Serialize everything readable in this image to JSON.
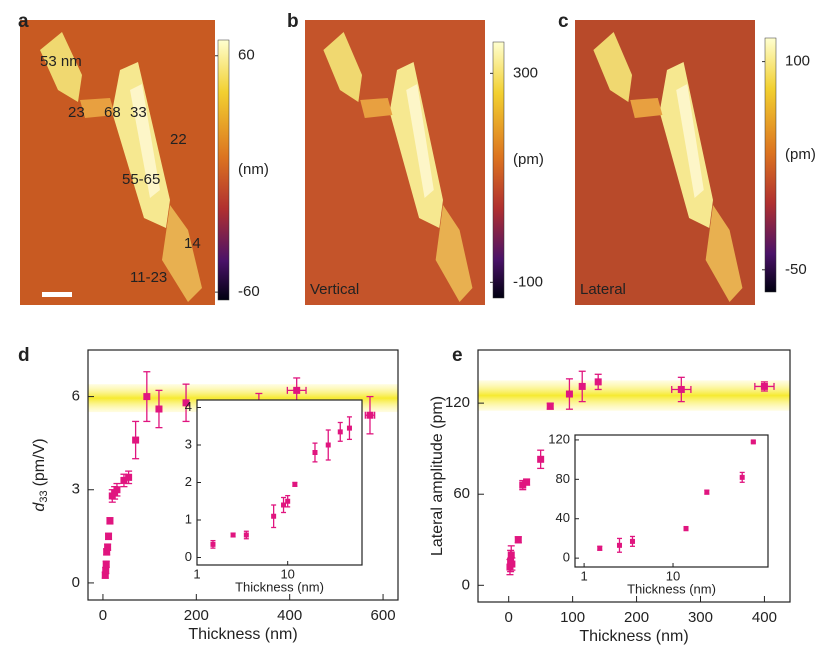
{
  "panel_labels": [
    "a",
    "b",
    "c",
    "d",
    "e"
  ],
  "images": [
    {
      "annotations": [
        "53 nm",
        "23",
        "68",
        "33",
        "22",
        "55-65",
        "14",
        "11-23"
      ],
      "colorbar": {
        "lim": [
          -64,
          68
        ],
        "ticks": [
          60,
          -60
        ],
        "unit": "(nm)"
      }
    },
    {
      "caption": "Vertical",
      "colorbar": {
        "lim": [
          -130,
          360
        ],
        "ticks": [
          300,
          -100
        ],
        "unit": "(pm)"
      }
    },
    {
      "caption": "Lateral",
      "colorbar": {
        "lim": [
          -66,
          117
        ],
        "ticks": [
          100,
          -50
        ],
        "unit": "(pm)"
      }
    }
  ],
  "chart_data": [
    {
      "type": "scatter",
      "xlabel": "Thickness (nm)",
      "ylabel": {
        "symbol": "d",
        "subscript": "33",
        "unit": "(pm/V)"
      },
      "xlim": [
        -32,
        632
      ],
      "ylim": [
        -0.55,
        7.5
      ],
      "xticks": [
        0,
        200,
        400,
        600
      ],
      "yticks": [
        0,
        3,
        6
      ],
      "band": [
        5.5,
        6.4
      ],
      "color": "#e0157f",
      "x": [
        5,
        6,
        7,
        8,
        10,
        12,
        15,
        20,
        25,
        30,
        45,
        55,
        70,
        94,
        120,
        178,
        240,
        334,
        415,
        572
      ],
      "values": [
        0.25,
        0.4,
        0.6,
        1.0,
        1.15,
        1.5,
        2.0,
        2.8,
        2.9,
        3.0,
        3.3,
        3.4,
        4.6,
        6.0,
        5.6,
        5.8,
        5.2,
        5.7,
        6.2,
        5.4
      ],
      "yerr": [
        0.1,
        0.1,
        0.1,
        0.1,
        0.1,
        0.1,
        0.1,
        0.2,
        0.2,
        0.2,
        0.2,
        0.2,
        0.6,
        0.8,
        0.6,
        0.6,
        0.05,
        0.4,
        0.4,
        0.6
      ],
      "xerr": [
        0,
        0,
        0,
        0,
        0,
        0,
        0,
        0,
        0,
        0,
        5,
        5,
        0,
        0,
        0,
        0,
        8,
        0,
        20,
        10
      ]
    },
    {
      "type": "scatter",
      "xlabel": "Thickness (nm)",
      "log_x": true,
      "xlim": [
        1,
        66
      ],
      "ylim": [
        -0.2,
        4.2
      ],
      "xticks": [
        1,
        10
      ],
      "yticks": [
        0,
        1,
        2,
        3,
        4
      ],
      "color": "#e0157f",
      "x": [
        1.5,
        2.5,
        3.5,
        7,
        9,
        10,
        12,
        20,
        28,
        38,
        48
      ],
      "values": [
        0.35,
        0.6,
        0.6,
        1.1,
        1.4,
        1.5,
        1.95,
        2.8,
        3.0,
        3.35,
        3.45
      ],
      "yerr": [
        0.1,
        0.05,
        0.1,
        0.3,
        0.2,
        0.15,
        0.05,
        0.25,
        0.4,
        0.25,
        0.3
      ]
    },
    {
      "type": "scatter",
      "xlabel": "Thickness (nm)",
      "ylabel": "Lateral amplitude (pm)",
      "xlim": [
        -48,
        440
      ],
      "ylim": [
        -11,
        155
      ],
      "xticks": [
        0,
        100,
        200,
        300,
        400
      ],
      "yticks": [
        0,
        60,
        120
      ],
      "band": [
        115,
        135
      ],
      "color": "#e0157f",
      "x": [
        2,
        3,
        4,
        5,
        15,
        22,
        28,
        50,
        65,
        95,
        115,
        140,
        270,
        400
      ],
      "values": [
        12,
        16,
        20,
        14,
        30,
        66,
        68,
        83,
        118,
        126,
        131,
        134,
        129,
        131
      ],
      "yerr": [
        5,
        7,
        6,
        4,
        2,
        3,
        2,
        6,
        2,
        10,
        10,
        5,
        8,
        3
      ],
      "xerr": [
        0,
        0,
        0,
        0,
        0,
        0,
        0,
        0,
        0,
        0,
        0,
        0,
        15,
        15
      ]
    },
    {
      "type": "scatter",
      "xlabel": "Thickness (nm)",
      "log_x": true,
      "xlim": [
        0.79,
        117
      ],
      "ylim": [
        -9,
        125
      ],
      "xticks": [
        1,
        10
      ],
      "yticks": [
        0,
        40,
        80,
        120
      ],
      "color": "#e0157f",
      "x": [
        1.5,
        2.5,
        3.5,
        14,
        24,
        60,
        80
      ],
      "values": [
        10,
        13,
        17,
        30,
        67,
        82,
        118
      ],
      "yerr": [
        2,
        7,
        5,
        2,
        2,
        5,
        1
      ]
    }
  ]
}
